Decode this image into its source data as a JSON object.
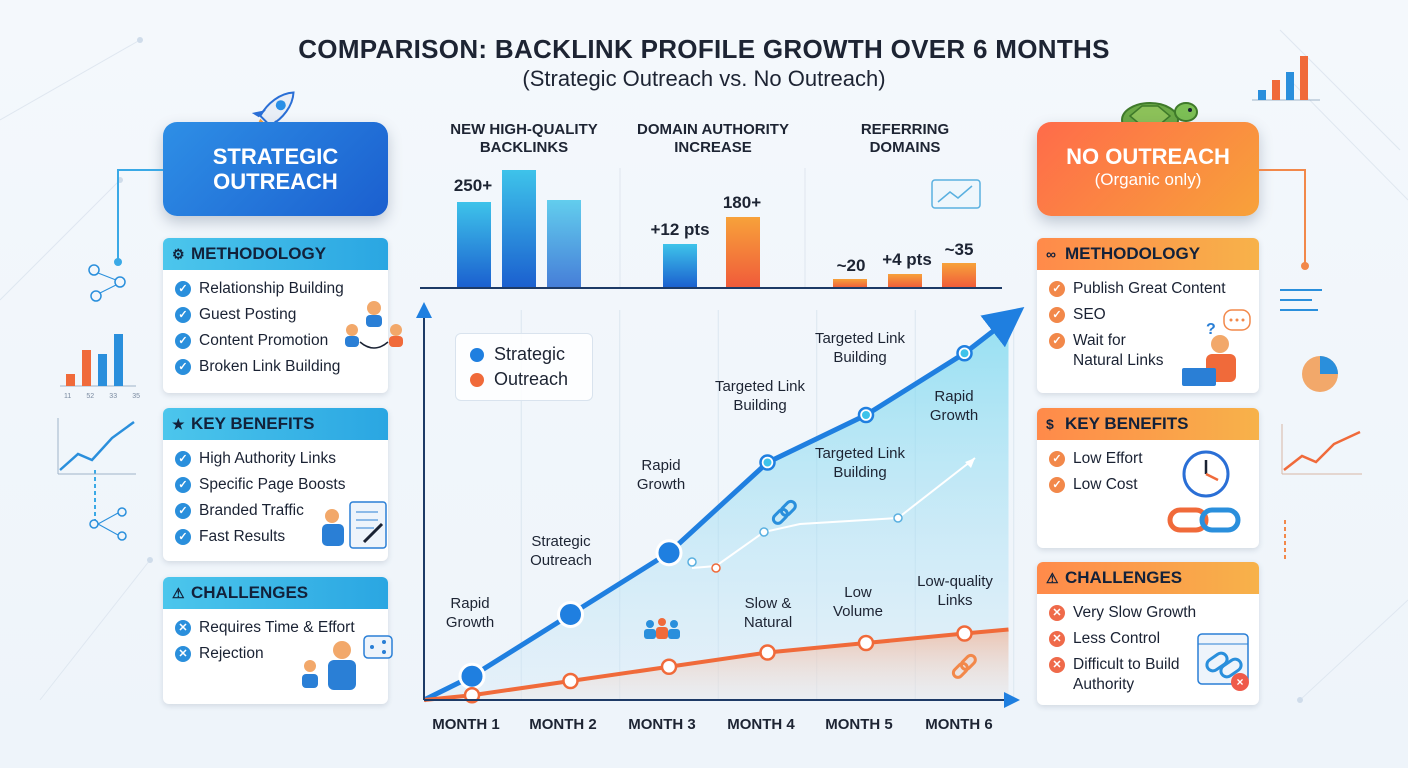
{
  "title": "COMPARISON: BACKLINK PROFILE GROWTH OVER 6 MONTHS",
  "subtitle": "(Strategic Outreach vs. No Outreach)",
  "left": {
    "hero_line1": "STRATEGIC",
    "hero_line2": "OUTREACH",
    "methodology": {
      "title": "METHODOLOGY",
      "items": [
        "Relationship Building",
        "Guest Posting",
        "Content Promotion",
        "Broken Link Building"
      ]
    },
    "benefits": {
      "title": "KEY BENEFITS",
      "items": [
        "High Authority Links",
        "Specific Page Boosts",
        "Branded Traffic",
        "Fast Results"
      ]
    },
    "challenges": {
      "title": "CHALLENGES",
      "items": [
        "Requires Time & Effort",
        "Rejection"
      ]
    },
    "mini_ticks": [
      "11",
      "52",
      "33",
      "35"
    ]
  },
  "right": {
    "hero_line1": "NO OUTREACH",
    "hero_line2": "(Organic only)",
    "methodology": {
      "title": "METHODOLOGY",
      "items": [
        "Publish Great Content",
        "SEO",
        "Wait for Natural Links"
      ]
    },
    "benefits": {
      "title": "KEY BENEFITS",
      "items": [
        "Low Effort",
        "Low Cost"
      ]
    },
    "challenges": {
      "title": "CHALLENGES",
      "items": [
        "Very Slow Growth",
        "Less Control",
        "Difficult to Build Authority"
      ]
    }
  },
  "colors": {
    "strategic": "#1f7fe0",
    "no_outreach": "#f06a3a",
    "accent_cyan": "#3ec3ea"
  },
  "chart_data": [
    {
      "type": "bar",
      "panels": [
        {
          "heading": "NEW HIGH-QUALITY BACKLINKS",
          "value_label": "250+"
        },
        {
          "heading": "DOMAIN AUTHORITY INCREASE",
          "labels": [
            "+12 pts",
            "180+"
          ]
        },
        {
          "heading": "REFERRING DOMAINS",
          "labels": [
            "~20",
            "+4 pts",
            "~35"
          ]
        }
      ]
    },
    {
      "type": "line",
      "categories": [
        "MONTH 1",
        "MONTH 2",
        "MONTH 3",
        "MONTH 4",
        "MONTH 5",
        "MONTH 6"
      ],
      "legend": [
        "Strategic",
        "Outreach"
      ],
      "series": [
        {
          "name": "Strategic",
          "values": [
            5,
            18,
            31,
            50,
            60,
            73
          ]
        },
        {
          "name": "Outreach",
          "values": [
            1,
            4,
            7,
            10,
            12,
            14
          ]
        }
      ],
      "annotations": {
        "strategic": [
          "Rapid Growth",
          "Strategic Outreach",
          "Rapid Growth",
          "Targeted Link Building",
          "Targeted Link Building",
          "Rapid Growth"
        ],
        "outreach": [
          "Slow & Natural",
          "Low Volume",
          "Low-quality Links"
        ],
        "middle": [
          "Targeted Link Building"
        ]
      }
    }
  ]
}
